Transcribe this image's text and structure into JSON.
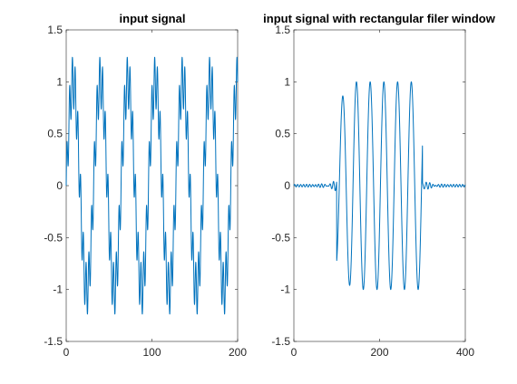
{
  "colors": {
    "line": "#0072bd",
    "axis": "#262626",
    "background": "#ffffff"
  },
  "chart_data": [
    {
      "type": "line",
      "title": "input signal",
      "xlabel": "",
      "ylabel": "",
      "xlim": [
        0,
        200
      ],
      "ylim": [
        -1.5,
        1.5
      ],
      "xticks": [
        "0",
        "100",
        "200"
      ],
      "yticks": [
        "-1.5",
        "-1",
        "-0.5",
        "0",
        "0.5",
        "1",
        "1.5"
      ],
      "grid": false,
      "signal": {
        "description_form": "sum of sinusoids",
        "components": [
          {
            "amplitude": 1.0,
            "period": 32
          },
          {
            "amplitude": 0.25,
            "period": 3.2
          }
        ],
        "x_start": 0,
        "x_end": 200,
        "peak": 1.22,
        "trough": -1.22
      }
    },
    {
      "type": "line",
      "title": "input signal with rectangular filer window",
      "xlabel": "",
      "ylabel": "",
      "xlim": [
        0,
        400
      ],
      "ylim": [
        -1.5,
        1.5
      ],
      "xticks": [
        "0",
        "200",
        "400"
      ],
      "yticks": [
        "-1.5",
        "-1",
        "-0.5",
        "0",
        "0.5",
        "1",
        "1.5"
      ],
      "grid": false,
      "signal": {
        "description_form": "windowed sinusoid",
        "period": 32,
        "window": [
          100,
          300
        ],
        "peak": 1.02,
        "trough": -1.0,
        "x_start": 0,
        "x_end": 400
      }
    }
  ]
}
